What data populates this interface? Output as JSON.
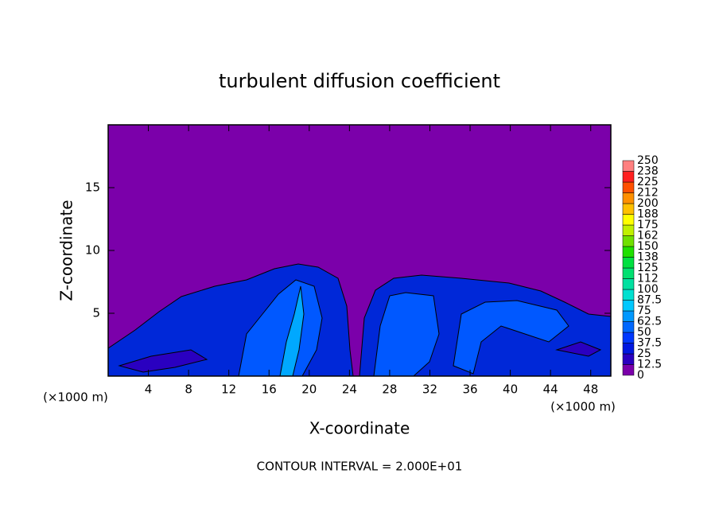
{
  "chart_data": {
    "type": "contour",
    "title": "turbulent diffusion coefficient",
    "xlabel": "X-coordinate",
    "ylabel": "Z-coordinate",
    "x_unit_left": "(×1000 m)",
    "x_unit_right": "(×1000 m)",
    "annotation": "CONTOUR INTERVAL = 2.000E+01",
    "xlim": [
      0,
      50
    ],
    "ylim": [
      0,
      20
    ],
    "xticks": [
      4,
      8,
      12,
      16,
      20,
      24,
      28,
      32,
      36,
      40,
      44,
      48
    ],
    "yticks": [
      5,
      10,
      15
    ],
    "background_color": "#7b00aa",
    "colorbar": {
      "levels": [
        0,
        12.5,
        25,
        37.5,
        50,
        62.5,
        75,
        87.5,
        100,
        {
          "value": 112.5,
          "label": "112"
        },
        125,
        {
          "value": 137.5,
          "label": "138"
        },
        150,
        {
          "value": 162.5,
          "label": "162"
        },
        175,
        {
          "value": 187.5,
          "label": "188"
        },
        200,
        {
          "value": 212.5,
          "label": "212"
        },
        225,
        {
          "value": 237.5,
          "label": "238"
        },
        250
      ],
      "colors": [
        "#7b00aa",
        "#2a00c0",
        "#0018e0",
        "#0038ff",
        "#0068ff",
        "#0098ff",
        "#00c8ff",
        "#00e0d0",
        "#00e0a0",
        "#00e070",
        "#00e040",
        "#20e000",
        "#70e000",
        "#c0f000",
        "#ffff00",
        "#ffc000",
        "#ff9000",
        "#ff5000",
        "#ff2020",
        "#ff8080"
      ]
    }
  }
}
